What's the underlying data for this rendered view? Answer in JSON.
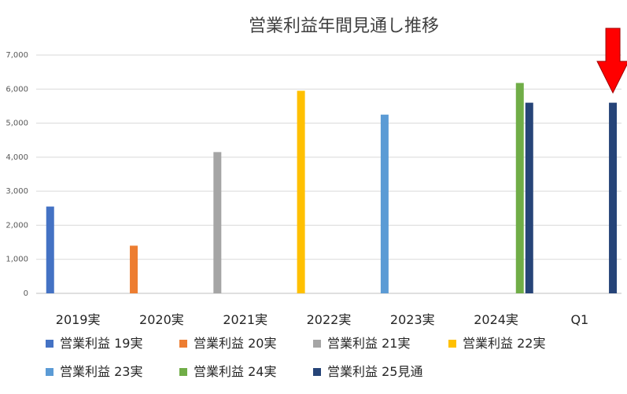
{
  "chart_data": {
    "type": "bar",
    "title": "営業利益年間見通し推移",
    "categories": [
      "2019実",
      "2020実",
      "2021実",
      "2022実",
      "2023実",
      "2024実",
      "Q1"
    ],
    "ylim": [
      0,
      7000
    ],
    "yticks": [
      "0",
      "1,000",
      "2,000",
      "3,000",
      "4,000",
      "5,000",
      "6,000",
      "7,000"
    ],
    "ytick_values": [
      0,
      1000,
      2000,
      3000,
      4000,
      5000,
      6000,
      7000
    ],
    "grid": true,
    "legend_position": "bottom",
    "series": [
      {
        "name": "営業利益 19実",
        "color": "#4472C4",
        "values": [
          2550,
          null,
          null,
          null,
          null,
          null,
          null
        ]
      },
      {
        "name": "営業利益 20実",
        "color": "#ED7D31",
        "values": [
          null,
          1400,
          null,
          null,
          null,
          null,
          null
        ]
      },
      {
        "name": "営業利益 21実",
        "color": "#A5A5A5",
        "values": [
          null,
          null,
          4150,
          null,
          null,
          null,
          null
        ]
      },
      {
        "name": "営業利益 22実",
        "color": "#FFC000",
        "values": [
          null,
          null,
          null,
          5950,
          null,
          null,
          null
        ]
      },
      {
        "name": "営業利益 23実",
        "color": "#5B9BD5",
        "values": [
          null,
          null,
          null,
          null,
          5250,
          null,
          null
        ]
      },
      {
        "name": "営業利益 24実",
        "color": "#70AD47",
        "values": [
          null,
          null,
          null,
          null,
          null,
          6180,
          null
        ]
      },
      {
        "name": "営業利益 25見通",
        "color": "#264478",
        "values": [
          null,
          null,
          null,
          null,
          null,
          5600,
          5600
        ]
      }
    ],
    "annotation": {
      "type": "arrow",
      "color": "#FF0000",
      "target_category": "Q1"
    }
  }
}
